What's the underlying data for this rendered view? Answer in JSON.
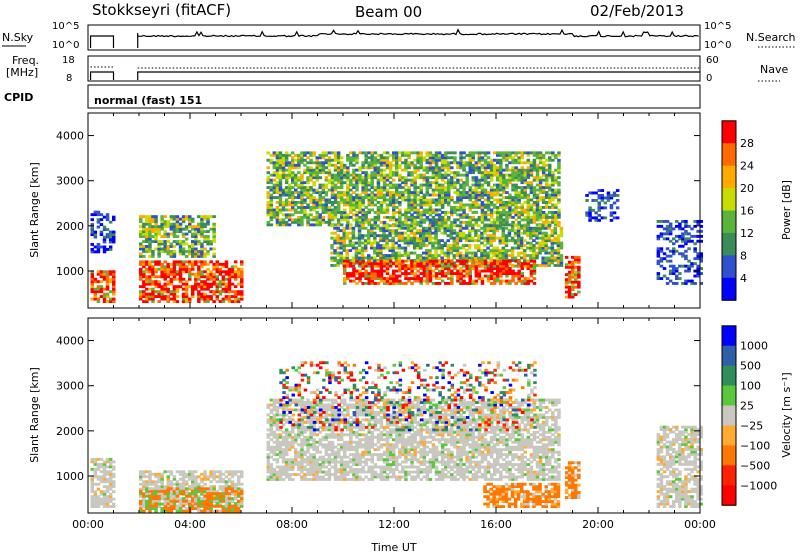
{
  "header": {
    "station": "Stokkseyri (fitACF)",
    "beam": "Beam 00",
    "date": "02/Feb/2013"
  },
  "top_panels": {
    "nsky_label": "N.Sky",
    "nsky_ticks": [
      "10^5",
      "10^0"
    ],
    "nsearch_label": "N.Search",
    "nsearch_ticks": [
      "10^5",
      "10^0"
    ],
    "freq_label": "Freq.",
    "freq_unit": "[MHz]",
    "freq_ticks": [
      "18",
      "8"
    ],
    "nave_label": "Nave",
    "nave_ticks": [
      "60",
      "0"
    ],
    "cpid_label": "CPID",
    "cpid_text": "normal (fast) 151"
  },
  "chart_data": [
    {
      "type": "heatmap",
      "name": "power",
      "xlabel": "",
      "ylabel": "Slant Range [km]",
      "xlim": [
        0,
        24
      ],
      "ylim": [
        180,
        4500
      ],
      "y_ticks": [
        "1000",
        "2000",
        "3000",
        "4000"
      ],
      "colorbar": {
        "label": "Power [dB]",
        "ticks": [
          "4",
          "8",
          "12",
          "16",
          "20",
          "24",
          "28"
        ],
        "colors": [
          "#0000ff",
          "#3050d0",
          "#3c8c5a",
          "#5ab43c",
          "#c8dc00",
          "#ffaa00",
          "#ff6a00",
          "#ff0000"
        ]
      },
      "no_data_intervals": [
        [
          1.0,
          1.95
        ]
      ],
      "echo_regions": [
        {
          "t0": 0.1,
          "t1": 1.0,
          "r0": 300,
          "r1": 1000,
          "level": "high"
        },
        {
          "t0": 0.1,
          "t1": 1.0,
          "r0": 1400,
          "r1": 2300,
          "level": "low"
        },
        {
          "t0": 2.0,
          "t1": 6.0,
          "r0": 300,
          "r1": 1200,
          "level": "high"
        },
        {
          "t0": 2.0,
          "t1": 5.0,
          "r0": 1300,
          "r1": 2200,
          "level": "mid"
        },
        {
          "t0": 7.0,
          "t1": 18.5,
          "r0": 2000,
          "r1": 3600,
          "level": "mid"
        },
        {
          "t0": 9.5,
          "t1": 18.5,
          "r0": 1100,
          "r1": 2000,
          "level": "mid"
        },
        {
          "t0": 10.0,
          "t1": 17.5,
          "r0": 700,
          "r1": 1200,
          "level": "high"
        },
        {
          "t0": 18.7,
          "t1": 19.3,
          "r0": 400,
          "r1": 1300,
          "level": "high"
        },
        {
          "t0": 19.5,
          "t1": 20.8,
          "r0": 2100,
          "r1": 2800,
          "level": "low"
        },
        {
          "t0": 22.3,
          "t1": 24.0,
          "r0": 700,
          "r1": 2100,
          "level": "low"
        }
      ]
    },
    {
      "type": "heatmap",
      "name": "velocity",
      "xlabel": "Time UT",
      "ylabel": "Slant Range [km]",
      "xlim": [
        0,
        24
      ],
      "ylim": [
        180,
        4500
      ],
      "x_ticks": [
        "00:00",
        "04:00",
        "08:00",
        "12:00",
        "16:00",
        "20:00",
        "00:00"
      ],
      "y_ticks": [
        "1000",
        "2000",
        "3000",
        "4000"
      ],
      "colorbar": {
        "label": "Velocity [m s⁻¹]",
        "ticks": [
          "1000",
          "500",
          "100",
          "25",
          "−25",
          "−100",
          "−500",
          "−1000"
        ],
        "colors": [
          "#0000ff",
          "#2f5fa8",
          "#2f8f5a",
          "#5ac83c",
          "#c8c8c0",
          "#ffaa33",
          "#ff7700",
          "#ff2200",
          "#ff0000"
        ]
      },
      "no_data_intervals": [
        [
          1.0,
          1.95
        ]
      ],
      "echo_regions": [
        {
          "t0": 0.1,
          "t1": 1.0,
          "r0": 300,
          "r1": 1400,
          "level": "ground"
        },
        {
          "t0": 2.0,
          "t1": 6.0,
          "r0": 300,
          "r1": 1100,
          "level": "ground"
        },
        {
          "t0": 2.0,
          "t1": 6.0,
          "r0": 200,
          "r1": 700,
          "level": "toward"
        },
        {
          "t0": 7.0,
          "t1": 18.5,
          "r0": 900,
          "r1": 2700,
          "level": "ground"
        },
        {
          "t0": 7.5,
          "t1": 17.5,
          "r0": 2000,
          "r1": 3500,
          "level": "mixed"
        },
        {
          "t0": 15.5,
          "t1": 18.5,
          "r0": 300,
          "r1": 800,
          "level": "away"
        },
        {
          "t0": 18.7,
          "t1": 19.3,
          "r0": 500,
          "r1": 1300,
          "level": "away"
        },
        {
          "t0": 22.3,
          "t1": 24.0,
          "r0": 300,
          "r1": 2100,
          "level": "ground"
        }
      ]
    }
  ]
}
